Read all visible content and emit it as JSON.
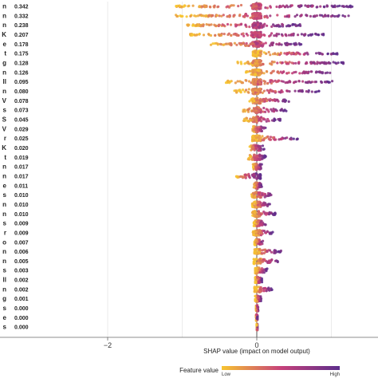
{
  "chart_data": {
    "type": "scatter",
    "subtype": "shap-beeswarm",
    "title": "",
    "xlabel": "SHAP value (impact on model output)",
    "ylabel": "",
    "xlim": [
      -3,
      1.35
    ],
    "xticks": [
      -2,
      0
    ],
    "grid": true,
    "feature_labels": [
      "n",
      "n",
      "n",
      "K",
      "e",
      "t",
      "g",
      "n",
      "ll",
      "n",
      "V",
      "s",
      "S",
      "V",
      "r",
      "K",
      "t",
      "n",
      "n",
      "e",
      "s",
      "n",
      "n",
      "s",
      "r",
      "o",
      "n",
      "n",
      "s",
      "ll",
      "n",
      "g",
      "s",
      "e",
      "s"
    ],
    "mean_abs_shap": [
      "0.342",
      "0.332",
      "0.238",
      "0.207",
      "0.178",
      "0.175",
      "0.128",
      "0.126",
      "0.095",
      "0.080",
      "0.078",
      "0.073",
      "0.045",
      "0.029",
      "0.025",
      "0.020",
      "0.019",
      "0.017",
      "0.017",
      "0.011",
      "0.010",
      "0.010",
      "0.010",
      "0.009",
      "0.009",
      "0.007",
      "0.006",
      "0.005",
      "0.003",
      "0.002",
      "0.002",
      "0.001",
      "0.000",
      "0.000",
      "0.000"
    ],
    "row_ranges": [
      [
        -1.12,
        1.3
      ],
      [
        -1.1,
        1.32
      ],
      [
        -0.95,
        0.6
      ],
      [
        -0.92,
        0.9
      ],
      [
        -0.62,
        0.62
      ],
      [
        -0.05,
        1.08
      ],
      [
        -0.28,
        1.2
      ],
      [
        -0.15,
        1.0
      ],
      [
        -0.42,
        1.02
      ],
      [
        -0.32,
        0.85
      ],
      [
        -0.1,
        0.45
      ],
      [
        -0.2,
        0.4
      ],
      [
        -0.18,
        0.32
      ],
      [
        -0.06,
        0.12
      ],
      [
        -0.06,
        0.55
      ],
      [
        -0.1,
        0.1
      ],
      [
        -0.12,
        0.12
      ],
      [
        -0.05,
        0.08
      ],
      [
        -0.28,
        0.05
      ],
      [
        -0.04,
        0.07
      ],
      [
        -0.09,
        0.22
      ],
      [
        -0.06,
        0.18
      ],
      [
        -0.07,
        0.25
      ],
      [
        -0.04,
        0.12
      ],
      [
        -0.05,
        0.22
      ],
      [
        -0.03,
        0.1
      ],
      [
        -0.03,
        0.33
      ],
      [
        -0.04,
        0.3
      ],
      [
        -0.02,
        0.14
      ],
      [
        -0.02,
        0.07
      ],
      [
        -0.03,
        0.22
      ],
      [
        -0.02,
        0.06
      ],
      [
        -0.01,
        0.02
      ],
      [
        -0.01,
        0.01
      ],
      [
        0.0,
        0.01
      ]
    ],
    "color_legend": {
      "title": "Feature value",
      "low_label": "Low",
      "high_label": "High",
      "low_color": "#f7c531",
      "mid_color": "#c6417a",
      "high_color": "#5d2e8c"
    }
  }
}
